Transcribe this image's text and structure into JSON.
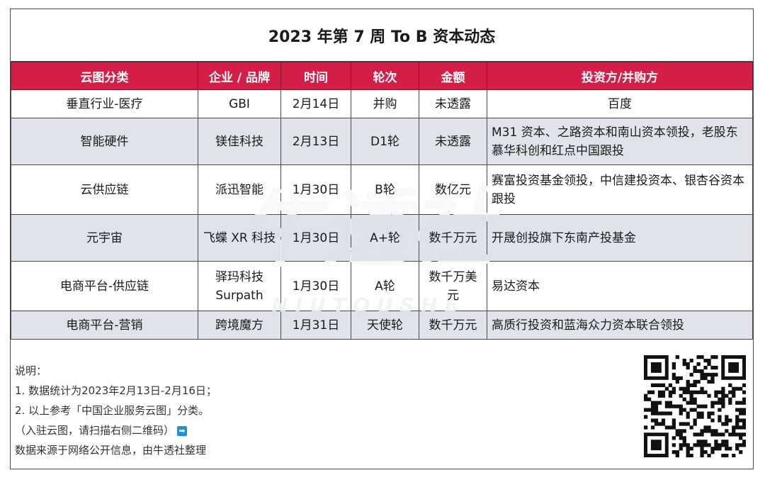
{
  "title": "2023 年第 7 周 To B 资本动态",
  "headers": [
    "云图分类",
    "企业 / 品牌",
    "时间",
    "轮次",
    "金额",
    "投资方/并购方"
  ],
  "rows": [
    {
      "category": "垂直行业-医疗",
      "company": "GBI",
      "date": "2月14日",
      "round": "并购",
      "amount": "未透露",
      "investors": "百度"
    },
    {
      "category": "智能硬件",
      "company": "镁佳科技",
      "date": "2月13日",
      "round": "D1轮",
      "amount": "未透露",
      "investors": "M31 资本、之路资本和南山资本领投，老股东慕华科创和红点中国跟投"
    },
    {
      "category": "云供应链",
      "company": "派迅智能",
      "date": "1月30日",
      "round": "B轮",
      "amount": "数亿元",
      "investors": "赛富投资基金领投，中信建投资本、银杏谷资本跟投"
    },
    {
      "category": "元宇宙",
      "company": "飞蝶 XR 科技",
      "date": "1月30日",
      "round": "A+轮",
      "amount": "数千万元",
      "investors": "开晟创投旗下东南产投基金"
    },
    {
      "category": "电商平台-供应链",
      "company": "驿玛科技 Surpath",
      "date": "1月30日",
      "round": "A轮",
      "amount": "数千万美元",
      "investors": "易达资本"
    },
    {
      "category": "电商平台-营销",
      "company": "跨境魔方",
      "date": "1月31日",
      "round": "天使轮",
      "amount": "数千万元",
      "investors": "高质行投资和蓝海众力资本联合领投"
    }
  ],
  "notes": {
    "heading": "说明：",
    "line1": " 1. 数据统计为2023年2月13日-2月16日；",
    "line2": "2. 以上参考「中国企业服务云图」分类。",
    "line3": "（入驻云图，请扫描右侧二维码）",
    "arrow_icon": "arrow-right-icon",
    "source": "数据来源于网络公开信息，由牛透社整理"
  },
  "watermark": {
    "brand": "牛透社",
    "latin": "N I U T O U S H E"
  },
  "colors": {
    "header_bg": "#d31e47",
    "stripe": "#dadee6",
    "arrow": "#1e8fe0"
  }
}
